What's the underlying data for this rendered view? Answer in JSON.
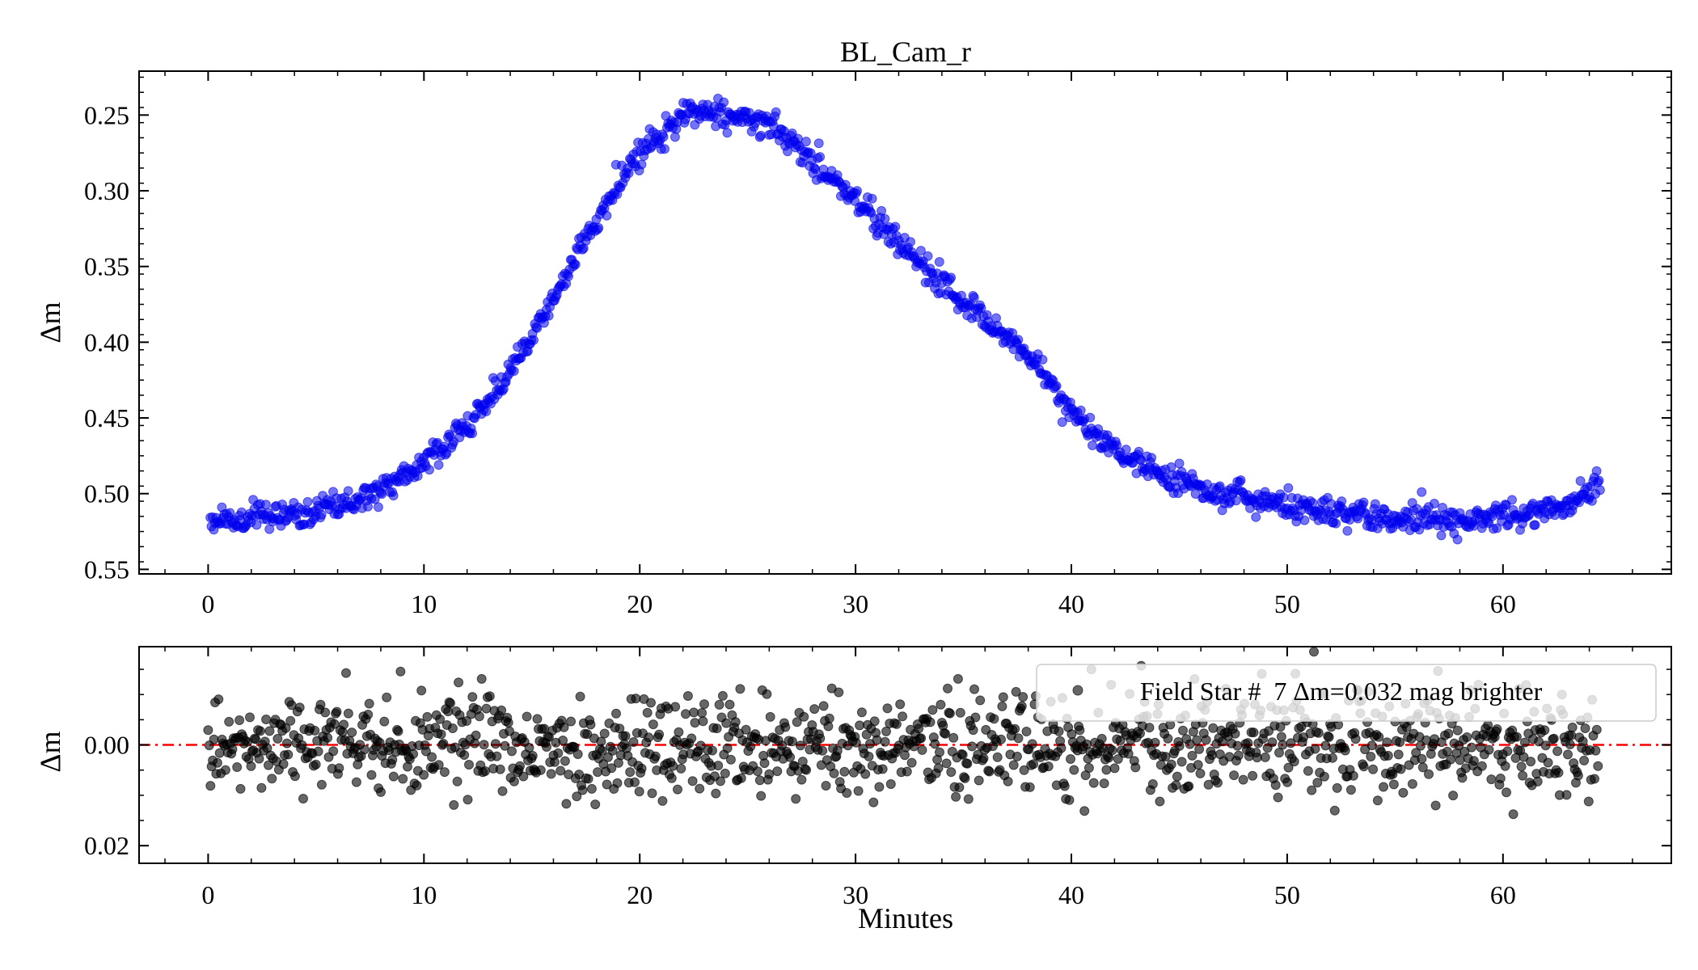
{
  "chart_data": [
    {
      "type": "scatter",
      "title": "BL_Cam_r",
      "xlabel": "",
      "ylabel": "Δm",
      "xlim": [
        -3.2,
        67.8
      ],
      "ylim": [
        0.553,
        0.221
      ],
      "y_inverted": true,
      "xticks": [
        0,
        10,
        20,
        30,
        40,
        50,
        60
      ],
      "xtick_labels": [
        "0",
        "10",
        "20",
        "30",
        "40",
        "50",
        "60"
      ],
      "yticks": [
        0.25,
        0.3,
        0.35,
        0.4,
        0.45,
        0.5,
        0.55
      ],
      "ytick_labels": [
        "0.25",
        "0.30",
        "0.35",
        "0.40",
        "0.45",
        "0.50",
        "0.55"
      ],
      "grid": false,
      "series": [
        {
          "color": "#0000ee",
          "marker": "circle",
          "x": [
            0,
            1,
            2,
            3,
            4,
            5,
            6,
            7,
            8,
            9,
            10,
            11,
            12,
            13,
            14,
            15,
            16,
            17,
            18,
            19,
            20,
            21,
            22,
            23,
            24,
            25,
            26,
            27,
            28,
            29,
            30,
            31,
            32,
            33,
            34,
            35,
            36,
            37,
            38,
            39,
            40,
            41,
            42,
            43,
            44,
            45,
            46,
            47,
            48,
            49,
            50,
            51,
            52,
            53,
            54,
            55,
            56,
            57,
            58,
            59,
            60,
            61,
            62,
            63,
            64.4
          ],
          "y": [
            0.517,
            0.519,
            0.516,
            0.514,
            0.515,
            0.512,
            0.507,
            0.503,
            0.497,
            0.488,
            0.478,
            0.468,
            0.456,
            0.438,
            0.418,
            0.396,
            0.372,
            0.346,
            0.32,
            0.296,
            0.276,
            0.262,
            0.25,
            0.247,
            0.249,
            0.252,
            0.258,
            0.268,
            0.28,
            0.293,
            0.307,
            0.32,
            0.334,
            0.347,
            0.36,
            0.373,
            0.385,
            0.397,
            0.409,
            0.427,
            0.446,
            0.459,
            0.469,
            0.478,
            0.485,
            0.492,
            0.496,
            0.5,
            0.503,
            0.506,
            0.509,
            0.511,
            0.513,
            0.514,
            0.516,
            0.517,
            0.517,
            0.517,
            0.516,
            0.516,
            0.515,
            0.513,
            0.51,
            0.506,
            0.494
          ]
        }
      ]
    },
    {
      "type": "scatter",
      "title": "",
      "xlabel": "Minutes",
      "ylabel": "Δm",
      "xlim": [
        -3.2,
        67.8
      ],
      "ylim": [
        0.0235,
        -0.0195
      ],
      "y_inverted": true,
      "xticks": [
        0,
        10,
        20,
        30,
        40,
        50,
        60
      ],
      "xtick_labels": [
        "0",
        "10",
        "20",
        "30",
        "40",
        "50",
        "60"
      ],
      "yticks": [
        0.0,
        0.02
      ],
      "ytick_labels": [
        "0.00",
        "0.02"
      ],
      "grid": false,
      "reference_line": {
        "y": 0.0,
        "color": "#ff0000",
        "style": "dash-dot"
      },
      "legend": {
        "placement": "top-right",
        "label": "Field Star #  7 Δm=0.032 mag brighter"
      },
      "series": [
        {
          "name": "Field Star #  7 Δm=0.032 mag brighter",
          "color": "#000000",
          "marker": "circle",
          "x_range": [
            0,
            64.4
          ],
          "mean": 0.0,
          "scatter_sd": 0.005
        }
      ]
    }
  ]
}
